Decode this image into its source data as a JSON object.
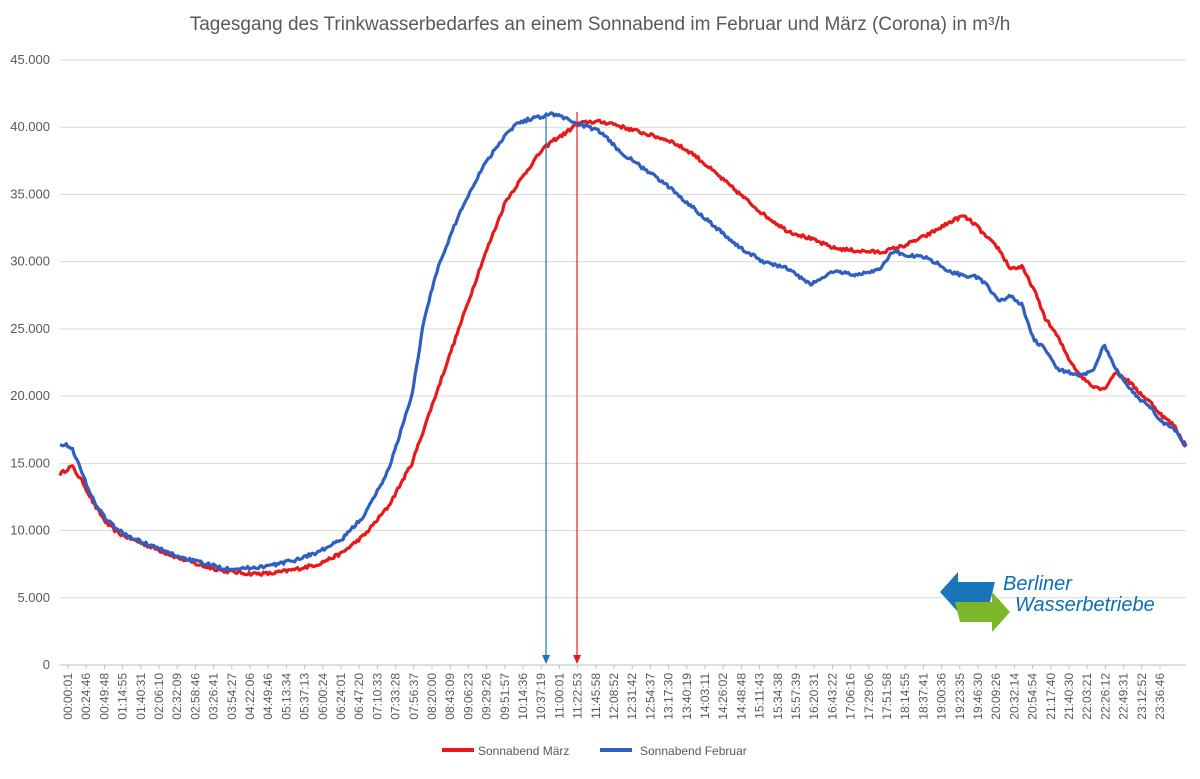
{
  "chart_data": {
    "type": "line",
    "title": "Tagesgang des Trinkwasserbedarfes an einem Sonnabend im Februar und März (Corona) in m³/h",
    "ylim": [
      0,
      45000
    ],
    "yticks": [
      "0",
      "5.000",
      "10.000",
      "15.000",
      "20.000",
      "25.000",
      "30.000",
      "35.000",
      "40.000",
      "45.000"
    ],
    "ytick_values": [
      0,
      5000,
      10000,
      15000,
      20000,
      25000,
      30000,
      35000,
      40000,
      45000
    ],
    "xlim_hours": [
      0,
      24
    ],
    "xtick_labels": [
      "00:00:01",
      "00:24:46",
      "00:49:48",
      "01:14:55",
      "01:40:31",
      "02:06:10",
      "02:32:09",
      "02:58:46",
      "03:26:41",
      "03:54:27",
      "04:22:06",
      "04:49:46",
      "05:13:34",
      "05:37:13",
      "06:00:24",
      "06:24:01",
      "06:47:20",
      "07:10:33",
      "07:33:28",
      "07:56:37",
      "08:20:00",
      "08:43:09",
      "09:06:23",
      "09:29:26",
      "09:51:57",
      "10:14:36",
      "10:37:19",
      "11:00:01",
      "11:22:53",
      "11:45:58",
      "12:08:52",
      "12:31:42",
      "12:54:37",
      "13:17:30",
      "13:40:19",
      "14:03:11",
      "14:26:02",
      "14:48:48",
      "15:11:43",
      "15:34:38",
      "15:57:39",
      "16:20:31",
      "16:43:22",
      "17:06:16",
      "17:29:06",
      "17:51:58",
      "18:14:55",
      "18:37:41",
      "19:00:36",
      "19:23:35",
      "19:46:30",
      "20:09:26",
      "20:32:14",
      "20:54:54",
      "21:17:40",
      "21:40:30",
      "22:03:21",
      "22:26:12",
      "22:49:31",
      "23:12:52",
      "23:36:46"
    ],
    "grid": true,
    "legend_position": "bottom",
    "series": [
      {
        "name": "Sonnabend März",
        "color": "#e8191b",
        "x_hours": [
          0,
          0.25,
          0.5,
          0.75,
          1,
          1.25,
          1.5,
          2,
          2.5,
          3,
          3.5,
          4,
          4.5,
          5,
          5.5,
          6,
          6.5,
          7,
          7.5,
          8,
          8.5,
          9,
          9.5,
          10,
          10.25,
          10.5,
          10.75,
          11,
          11.25,
          11.5,
          11.75,
          12,
          12.5,
          13,
          13.5,
          14,
          14.5,
          15,
          15.5,
          16,
          16.5,
          17,
          17.5,
          18,
          18.5,
          19,
          19.25,
          19.5,
          19.75,
          20,
          20.25,
          20.5,
          20.75,
          21,
          21.25,
          21.5,
          21.75,
          22,
          22.25,
          22.5,
          22.75,
          23,
          23.25,
          23.5,
          23.75,
          24
        ],
        "values": [
          14200,
          14800,
          13500,
          11800,
          10500,
          9800,
          9400,
          8700,
          8000,
          7400,
          7000,
          6800,
          6800,
          7100,
          7500,
          8300,
          9700,
          11800,
          15000,
          20000,
          25000,
          30000,
          34500,
          37000,
          38200,
          39000,
          39500,
          40200,
          40400,
          40400,
          40300,
          40000,
          39500,
          39000,
          38000,
          36500,
          35000,
          33500,
          32300,
          31700,
          31000,
          30800,
          30700,
          31200,
          32000,
          33000,
          33400,
          32800,
          31800,
          31000,
          29500,
          29600,
          28000,
          25800,
          24500,
          22800,
          21500,
          20800,
          20500,
          21800,
          21200,
          20300,
          19500,
          18500,
          17800,
          16200
        ]
      },
      {
        "name": "Sonnabend Februar",
        "color": "#2e5fc2",
        "x_hours": [
          0,
          0.25,
          0.5,
          0.75,
          1,
          1.25,
          1.5,
          2,
          2.5,
          3,
          3.5,
          4,
          4.5,
          5,
          5.5,
          6,
          6.5,
          7,
          7.5,
          7.75,
          8,
          8.5,
          9,
          9.5,
          9.75,
          10,
          10.25,
          10.5,
          10.75,
          11,
          11.25,
          11.5,
          12,
          12.5,
          13,
          13.5,
          14,
          14.5,
          15,
          15.5,
          16,
          16.5,
          17,
          17.5,
          17.75,
          18,
          18.5,
          19,
          19.25,
          19.5,
          19.75,
          20,
          20.25,
          20.5,
          20.75,
          21,
          21.25,
          21.5,
          21.75,
          22,
          22.25,
          22.5,
          22.75,
          23,
          23.25,
          23.5,
          23.75,
          24
        ],
        "values": [
          16500,
          16200,
          14000,
          12000,
          10800,
          10000,
          9500,
          8800,
          8100,
          7600,
          7200,
          7200,
          7400,
          7800,
          8400,
          9300,
          11200,
          14500,
          20000,
          25500,
          29000,
          33500,
          37000,
          39500,
          40300,
          40600,
          40800,
          41000,
          40700,
          40300,
          40000,
          39700,
          38000,
          36800,
          35500,
          34000,
          32500,
          31000,
          30000,
          29500,
          28300,
          29300,
          29000,
          29500,
          30800,
          30500,
          30300,
          29200,
          29000,
          28900,
          28300,
          27000,
          27500,
          26800,
          24200,
          23500,
          22000,
          21800,
          21500,
          21800,
          23800,
          22000,
          20800,
          19800,
          19200,
          18000,
          17600,
          16300
        ]
      }
    ],
    "annotations": [
      {
        "type": "vertical-arrow",
        "x_hours": 10.36,
        "color": "#1f77b4"
      },
      {
        "type": "vertical-arrow",
        "x_hours": 11.02,
        "color": "#e8191b"
      }
    ]
  },
  "logo": {
    "line1": "Berliner",
    "line2": "Wasserbetriebe",
    "blue": "#1b75bb",
    "green": "#7ab829"
  }
}
